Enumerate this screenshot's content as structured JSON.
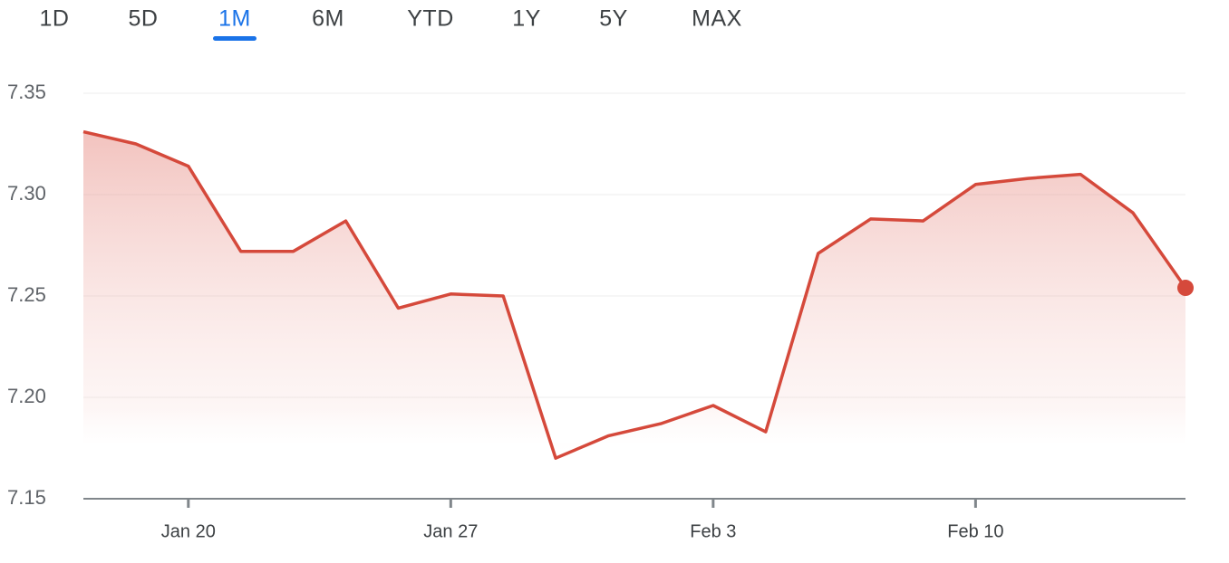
{
  "tabs": {
    "items": [
      "1D",
      "5D",
      "1M",
      "6M",
      "YTD",
      "1Y",
      "5Y",
      "MAX"
    ],
    "selected": "1M"
  },
  "chart_data": {
    "type": "line",
    "categories": [
      null,
      null,
      "Jan 20",
      null,
      null,
      null,
      null,
      "Jan 27",
      null,
      null,
      null,
      null,
      "Feb 3",
      null,
      null,
      null,
      null,
      "Feb 10",
      null,
      null,
      null,
      null
    ],
    "values": [
      7.331,
      7.325,
      7.314,
      7.272,
      7.272,
      7.287,
      7.244,
      7.251,
      7.25,
      7.17,
      7.181,
      7.187,
      7.196,
      7.183,
      7.271,
      7.288,
      7.287,
      7.305,
      7.308,
      7.31,
      7.291,
      7.254
    ],
    "color": "#d5493b",
    "ylim": [
      7.15,
      7.35
    ],
    "yticks": [
      7.15,
      {
        "value": 7.2,
        "label": "7.20"
      },
      7.25,
      {
        "value": 7.3,
        "label": "7.30"
      },
      7.35
    ],
    "grid": true,
    "area": true
  }
}
